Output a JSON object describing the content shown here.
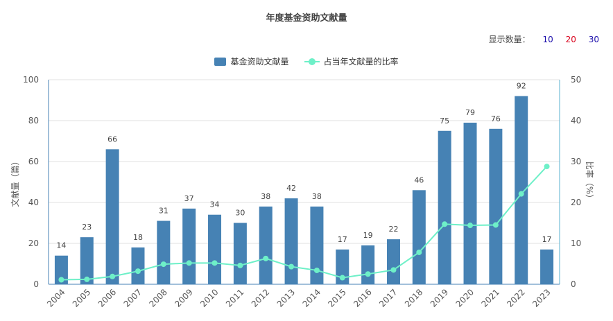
{
  "page": {
    "title": "年度基金资助文献量"
  },
  "count_control": {
    "label": "显示数量：",
    "options": [
      {
        "label": "10",
        "color": "#1a0dab"
      },
      {
        "label": "20",
        "color": "#d9001b"
      },
      {
        "label": "30",
        "color": "#1a0dab"
      }
    ]
  },
  "colors": {
    "bar": "#4682b4",
    "line": "#6ef0c8",
    "axis_left": "#4682b4",
    "axis_right": "#5ab0d0",
    "grid": "#e0e0e0",
    "text": "#555555"
  },
  "chart_data": {
    "type": "bar",
    "title": "年度基金资助文献量",
    "categories": [
      "2004",
      "2005",
      "2006",
      "2007",
      "2008",
      "2009",
      "2010",
      "2011",
      "2012",
      "2013",
      "2014",
      "2015",
      "2016",
      "2017",
      "2018",
      "2019",
      "2020",
      "2021",
      "2022",
      "2023"
    ],
    "series": [
      {
        "name": "基金资助文献量",
        "type": "bar",
        "axis": "left",
        "values": [
          14,
          23,
          66,
          18,
          31,
          37,
          34,
          30,
          38,
          42,
          38,
          17,
          19,
          22,
          46,
          75,
          79,
          76,
          92,
          17
        ]
      },
      {
        "name": "占当年文献量的比率",
        "type": "line",
        "axis": "right",
        "values": [
          1.1,
          1.2,
          1.9,
          3.2,
          4.9,
          5.2,
          5.2,
          4.6,
          6.3,
          4.3,
          3.4,
          1.6,
          2.5,
          3.5,
          7.8,
          14.7,
          14.4,
          14.5,
          22.1,
          28.8
        ]
      }
    ],
    "ylabel_left": "文献量（篇）",
    "ylabel_right": "比率（%）",
    "ylim_left": [
      0,
      100
    ],
    "yticks_left": [
      "0",
      "20",
      "40",
      "60",
      "80",
      "100"
    ],
    "ylim_right": [
      0,
      50
    ],
    "yticks_right": [
      "0",
      "10",
      "20",
      "30",
      "40",
      "50"
    ],
    "grid": true,
    "legend_position": "top-center"
  }
}
